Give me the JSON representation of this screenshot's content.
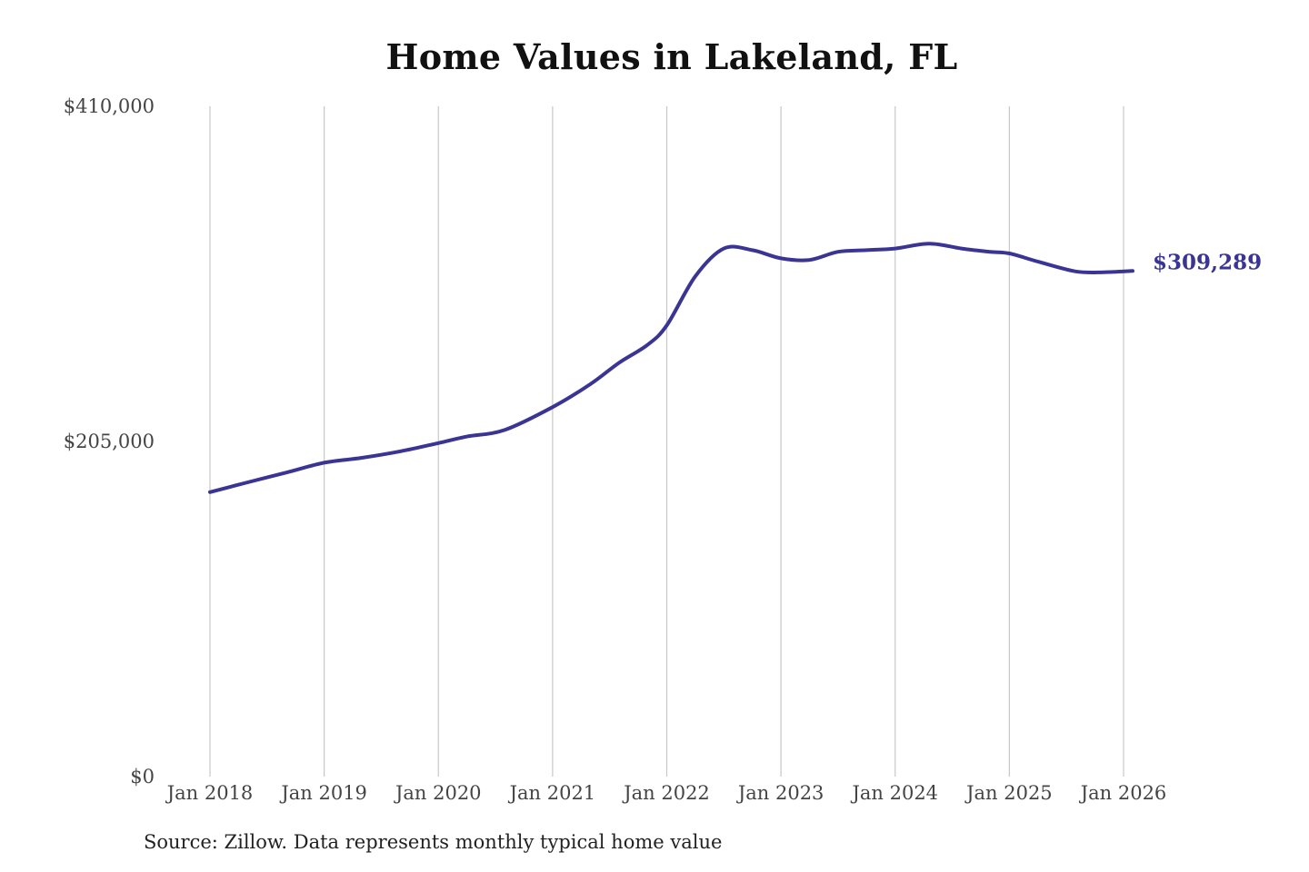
{
  "chart_data": {
    "type": "line",
    "title": "Home Values in Lakeland, FL",
    "source": "Source: Zillow. Data represents monthly typical home value",
    "xlabel": "",
    "ylabel": "",
    "ylim": [
      0,
      410000
    ],
    "y_ticks": [
      {
        "value": 0,
        "label": "$0"
      },
      {
        "value": 205000,
        "label": "$205,000"
      },
      {
        "value": 410000,
        "label": "$410,000"
      }
    ],
    "x_ticks": [
      {
        "value": 2018,
        "label": "Jan 2018"
      },
      {
        "value": 2019,
        "label": "Jan 2019"
      },
      {
        "value": 2020,
        "label": "Jan 2020"
      },
      {
        "value": 2021,
        "label": "Jan 2021"
      },
      {
        "value": 2022,
        "label": "Jan 2022"
      },
      {
        "value": 2023,
        "label": "Jan 2023"
      },
      {
        "value": 2024,
        "label": "Jan 2024"
      },
      {
        "value": 2025,
        "label": "Jan 2025"
      },
      {
        "value": 2026,
        "label": "Jan 2026"
      }
    ],
    "grid": "vertical",
    "series": [
      {
        "color": "#3a3595",
        "x": [
          2018.0,
          2018.33,
          2018.67,
          2019.0,
          2019.33,
          2019.67,
          2020.0,
          2020.25,
          2020.58,
          2021.0,
          2021.33,
          2021.58,
          2021.83,
          2022.0,
          2022.25,
          2022.5,
          2022.75,
          2023.0,
          2023.25,
          2023.5,
          2023.75,
          2024.0,
          2024.3,
          2024.58,
          2024.83,
          2025.0,
          2025.25,
          2025.58,
          2025.83,
          2026.08
        ],
        "y": [
          174000,
          180000,
          186000,
          192000,
          195000,
          199000,
          204000,
          208000,
          212000,
          226000,
          240000,
          253000,
          264000,
          276000,
          306000,
          323000,
          322000,
          317000,
          316000,
          321000,
          322000,
          323000,
          326000,
          323000,
          321000,
          320000,
          315000,
          309000,
          308500,
          309289
        ]
      }
    ],
    "annotations": [
      {
        "text": "$309,289",
        "color": "#3a3595"
      }
    ]
  }
}
